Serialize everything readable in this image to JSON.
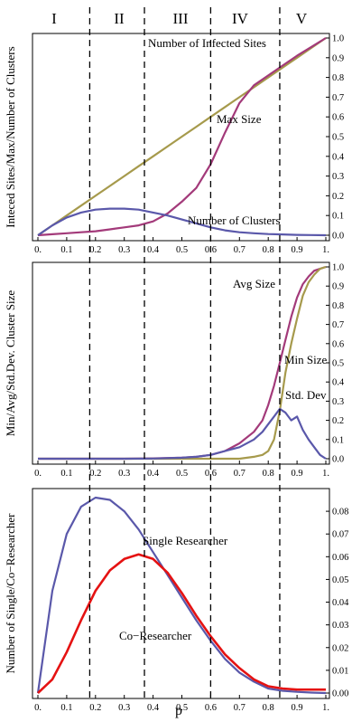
{
  "figure": {
    "regions": [
      "I",
      "II",
      "III",
      "IV",
      "V"
    ],
    "xlabel": "p"
  },
  "colors": {
    "olive": "#a69a4c",
    "magenta": "#a33a7a",
    "blue": "#5a58aa",
    "red": "#e51212"
  },
  "chart_data": [
    {
      "type": "line",
      "title": "",
      "xlabel": "",
      "ylabel": "Inteced Sites/Max/Number of Clusters",
      "xlim": [
        0,
        1
      ],
      "ylim": [
        0,
        1
      ],
      "x_ticks": [
        "0.",
        "0.1",
        "0.2",
        "0.3",
        "0.4",
        "0.5",
        "0.6",
        "0.7",
        "0.8",
        "0.9",
        "1."
      ],
      "y_ticks": [
        "0.0",
        "0.1",
        "0.2",
        "0.3",
        "0.4",
        "0.5",
        "0.6",
        "0.7",
        "0.8",
        "0.9",
        "1.0"
      ],
      "x": [
        0,
        0.05,
        0.1,
        0.15,
        0.2,
        0.25,
        0.3,
        0.35,
        0.4,
        0.45,
        0.5,
        0.55,
        0.6,
        0.65,
        0.7,
        0.75,
        0.8,
        0.85,
        0.9,
        0.95,
        1.0
      ],
      "series": [
        {
          "name": "Number of Infected Sites",
          "label": "Number of Infected Sites",
          "color": "olive",
          "values": [
            0,
            0.05,
            0.1,
            0.15,
            0.2,
            0.25,
            0.3,
            0.35,
            0.4,
            0.45,
            0.5,
            0.55,
            0.6,
            0.65,
            0.7,
            0.75,
            0.8,
            0.85,
            0.9,
            0.95,
            1.0
          ]
        },
        {
          "name": "Max Size",
          "label": "Max Size",
          "color": "magenta",
          "values": [
            0,
            0.005,
            0.01,
            0.015,
            0.02,
            0.03,
            0.04,
            0.05,
            0.07,
            0.11,
            0.17,
            0.24,
            0.36,
            0.52,
            0.67,
            0.76,
            0.81,
            0.86,
            0.91,
            0.955,
            1.0
          ]
        },
        {
          "name": "Number of Clusters",
          "label": "Number of Clusters",
          "color": "blue",
          "values": [
            0,
            0.05,
            0.09,
            0.115,
            0.13,
            0.135,
            0.135,
            0.13,
            0.115,
            0.1,
            0.08,
            0.06,
            0.04,
            0.025,
            0.015,
            0.01,
            0.006,
            0.004,
            0.002,
            0.001,
            0
          ]
        }
      ]
    },
    {
      "type": "line",
      "title": "",
      "xlabel": "",
      "ylabel": "Min/Avg/Std.Dev. Cluster Size",
      "xlim": [
        0,
        1
      ],
      "ylim": [
        0,
        1
      ],
      "x_ticks": [
        "0.",
        "0.1",
        "0.2",
        "0.3",
        "0.4",
        "0.5",
        "0.6",
        "0.7",
        "0.8",
        "0.9",
        "1."
      ],
      "y_ticks": [
        "0.0",
        "0.1",
        "0.2",
        "0.3",
        "0.4",
        "0.5",
        "0.6",
        "0.7",
        "0.8",
        "0.9",
        "1.0"
      ],
      "x": [
        0,
        0.1,
        0.2,
        0.3,
        0.4,
        0.5,
        0.55,
        0.6,
        0.65,
        0.7,
        0.75,
        0.78,
        0.8,
        0.82,
        0.84,
        0.86,
        0.88,
        0.9,
        0.92,
        0.94,
        0.96,
        0.98,
        1.0
      ],
      "series": [
        {
          "name": "Avg Size",
          "label": "Avg Size",
          "color": "magenta",
          "values": [
            0,
            0,
            0,
            0,
            0.002,
            0.005,
            0.01,
            0.02,
            0.04,
            0.08,
            0.14,
            0.2,
            0.28,
            0.38,
            0.5,
            0.62,
            0.74,
            0.84,
            0.91,
            0.95,
            0.98,
            0.99,
            1.0
          ]
        },
        {
          "name": "Min Size",
          "label": "Min Size",
          "color": "olive",
          "values": [
            0,
            0,
            0,
            0,
            0,
            0,
            0,
            0,
            0,
            0,
            0.01,
            0.02,
            0.04,
            0.1,
            0.25,
            0.45,
            0.6,
            0.73,
            0.85,
            0.92,
            0.96,
            0.99,
            1.0
          ]
        },
        {
          "name": "Std. Dev",
          "label": "Std. Dev",
          "color": "blue",
          "values": [
            0,
            0,
            0,
            0,
            0.001,
            0.005,
            0.01,
            0.02,
            0.04,
            0.06,
            0.1,
            0.14,
            0.18,
            0.22,
            0.26,
            0.24,
            0.2,
            0.22,
            0.15,
            0.1,
            0.06,
            0.02,
            0
          ]
        }
      ]
    },
    {
      "type": "line",
      "title": "",
      "xlabel": "p",
      "ylabel": "Number of Single/Co−Researcher",
      "xlim": [
        0,
        1
      ],
      "ylim": [
        0,
        0.088
      ],
      "x_ticks": [
        "0.",
        "0.1",
        "0.2",
        "0.3",
        "0.4",
        "0.5",
        "0.6",
        "0.7",
        "0.8",
        "0.9",
        "1."
      ],
      "y_ticks": [
        "0.00",
        "0.01",
        "0.02",
        "0.03",
        "0.04",
        "0.05",
        "0.06",
        "0.07",
        "0.08"
      ],
      "x": [
        0,
        0.05,
        0.1,
        0.15,
        0.2,
        0.25,
        0.3,
        0.35,
        0.4,
        0.45,
        0.5,
        0.55,
        0.6,
        0.65,
        0.7,
        0.75,
        0.8,
        0.85,
        0.9,
        0.95,
        1.0
      ],
      "series": [
        {
          "name": "Single Researcher",
          "label": "Single Researcher",
          "color": "blue",
          "values": [
            0,
            0.045,
            0.07,
            0.082,
            0.086,
            0.085,
            0.08,
            0.072,
            0.062,
            0.052,
            0.042,
            0.032,
            0.023,
            0.015,
            0.009,
            0.005,
            0.002,
            0.001,
            0.0005,
            0.0002,
            0
          ]
        },
        {
          "name": "Co−Researcher",
          "label": "Co−Researcher",
          "color": "red",
          "values": [
            0,
            0.006,
            0.018,
            0.032,
            0.045,
            0.054,
            0.059,
            0.061,
            0.059,
            0.053,
            0.044,
            0.034,
            0.025,
            0.017,
            0.011,
            0.006,
            0.003,
            0.002,
            0.0015,
            0.0015,
            0.0015
          ]
        }
      ]
    }
  ]
}
